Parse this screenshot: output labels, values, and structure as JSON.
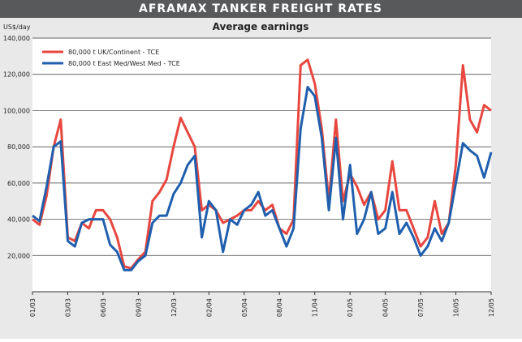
{
  "chart_data": {
    "type": "line",
    "title": "AFRAMAX TANKER FREIGHT RATES",
    "subtitle": "Average earnings",
    "y_label": "US$/day",
    "categories": [
      "01/03",
      null,
      null,
      null,
      null,
      "03/03",
      null,
      null,
      null,
      null,
      "06/03",
      null,
      null,
      null,
      null,
      "09/03",
      null,
      null,
      null,
      null,
      "12/03",
      null,
      null,
      null,
      null,
      "02/04",
      null,
      null,
      null,
      null,
      "05/04",
      null,
      null,
      null,
      null,
      "08/04",
      null,
      null,
      null,
      null,
      "11/04",
      null,
      null,
      null,
      null,
      "01/05",
      null,
      null,
      null,
      null,
      "04/05",
      null,
      null,
      null,
      null,
      "07/05",
      null,
      null,
      null,
      null,
      "10/05",
      null,
      null,
      null,
      null,
      "12/05"
    ],
    "series": [
      {
        "name": "80,000 t UK/Continent - TCE",
        "color": "#e8473f",
        "values": [
          40000,
          37000,
          53000,
          80000,
          95000,
          30000,
          28000,
          38000,
          35000,
          45000,
          45000,
          40000,
          30000,
          14000,
          13000,
          18000,
          22000,
          50000,
          55000,
          62000,
          80000,
          96000,
          88000,
          80000,
          45000,
          48000,
          45000,
          38000,
          40000,
          42000,
          45000,
          45000,
          50000,
          45000,
          48000,
          35000,
          32000,
          40000,
          125000,
          128000,
          115000,
          90000,
          50000,
          95000,
          50000,
          65000,
          58000,
          48000,
          55000,
          40000,
          45000,
          72000,
          45000,
          45000,
          35000,
          25000,
          30000,
          50000,
          32000,
          38000,
          70000,
          125000,
          95000,
          88000,
          103000,
          100000
        ]
      },
      {
        "name": "80,000 t East Med/West Med - TCE",
        "color": "#1f5fae",
        "values": [
          42000,
          39000,
          58000,
          80000,
          83000,
          28000,
          25000,
          38000,
          40000,
          40000,
          40000,
          26000,
          22000,
          12000,
          12000,
          17000,
          20000,
          38000,
          42000,
          42000,
          54000,
          60000,
          70000,
          75000,
          30000,
          50000,
          45000,
          22000,
          40000,
          37000,
          45000,
          48000,
          55000,
          42000,
          45000,
          35000,
          25000,
          35000,
          90000,
          113000,
          108000,
          85000,
          45000,
          85000,
          40000,
          70000,
          32000,
          40000,
          55000,
          32000,
          35000,
          55000,
          32000,
          38000,
          30000,
          20000,
          25000,
          35000,
          28000,
          38000,
          60000,
          82000,
          78000,
          75000,
          63000,
          77000
        ]
      }
    ],
    "ylim": [
      0,
      140000
    ],
    "yticks": [
      {
        "value": 20000,
        "label": "20,000"
      },
      {
        "value": 40000,
        "label": "40,000"
      },
      {
        "value": 60000,
        "label": "60,000"
      },
      {
        "value": 80000,
        "label": "80,000"
      },
      {
        "value": 100000,
        "label": "100,000"
      },
      {
        "value": 120000,
        "label": "120,000"
      },
      {
        "value": 140000,
        "label": "140,000"
      }
    ],
    "grid": true,
    "legend": "top-left"
  }
}
